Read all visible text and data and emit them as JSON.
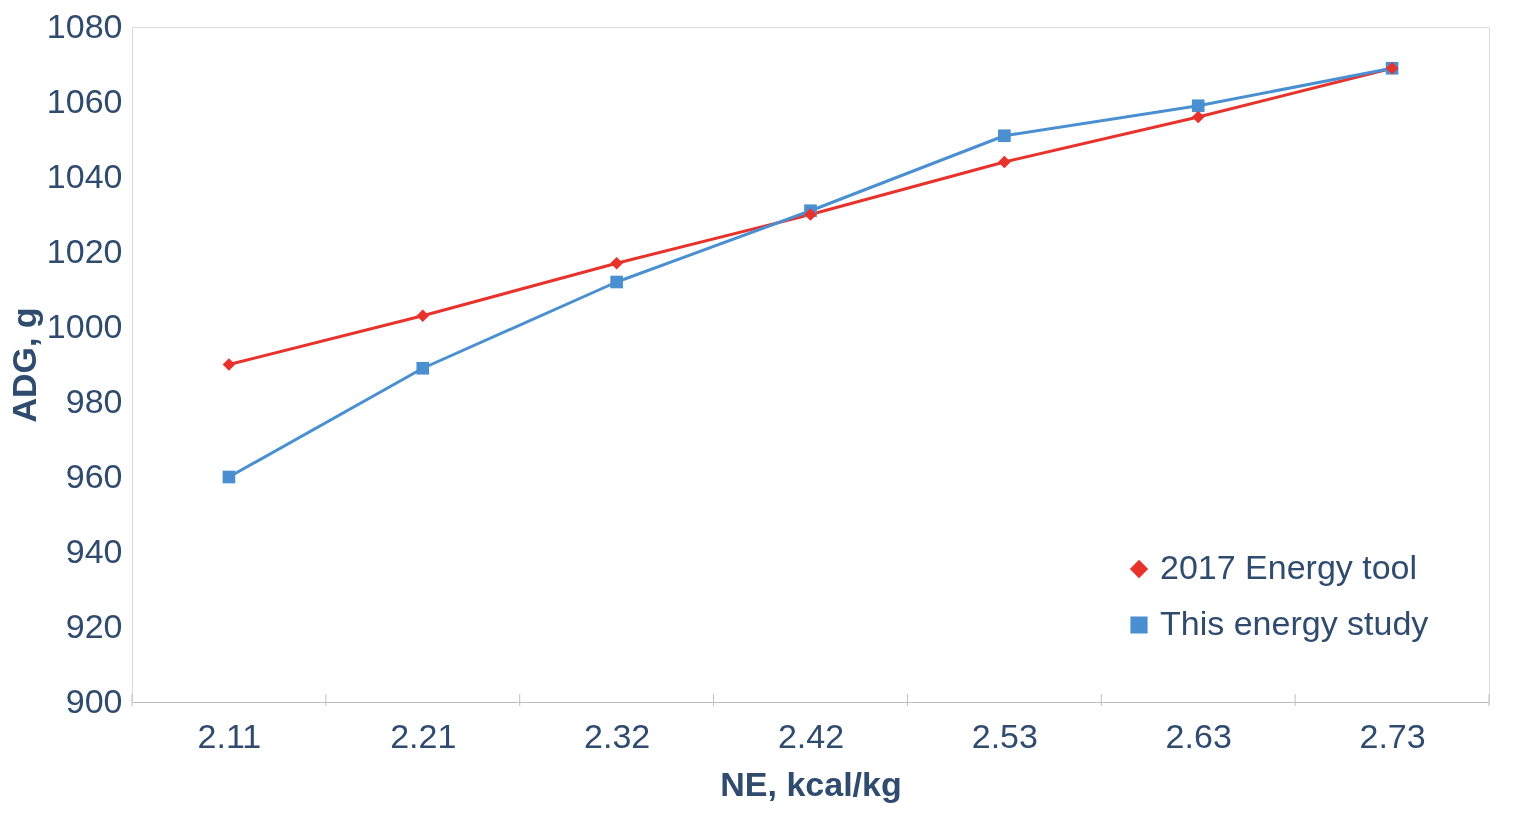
{
  "chart_data": {
    "type": "line",
    "xlabel": "NE, kcal/kg",
    "ylabel": "ADG, g",
    "categories": [
      "2.11",
      "2.21",
      "2.32",
      "2.42",
      "2.53",
      "2.63",
      "2.73"
    ],
    "series": [
      {
        "name": "2017 Energy tool",
        "color": "#e8322c",
        "marker": "diamond",
        "values": [
          990,
          1003,
          1017,
          1030,
          1044,
          1056,
          1069
        ]
      },
      {
        "name": "This energy study",
        "color": "#4a90d0",
        "marker": "square",
        "values": [
          960,
          989,
          1012,
          1031,
          1051,
          1059,
          1069
        ]
      }
    ],
    "ylim": [
      900,
      1080
    ],
    "yticks": [
      900,
      920,
      940,
      960,
      980,
      1000,
      1020,
      1040,
      1060,
      1080
    ],
    "grid": false,
    "legend": "bottom right",
    "line_style": "solid"
  }
}
